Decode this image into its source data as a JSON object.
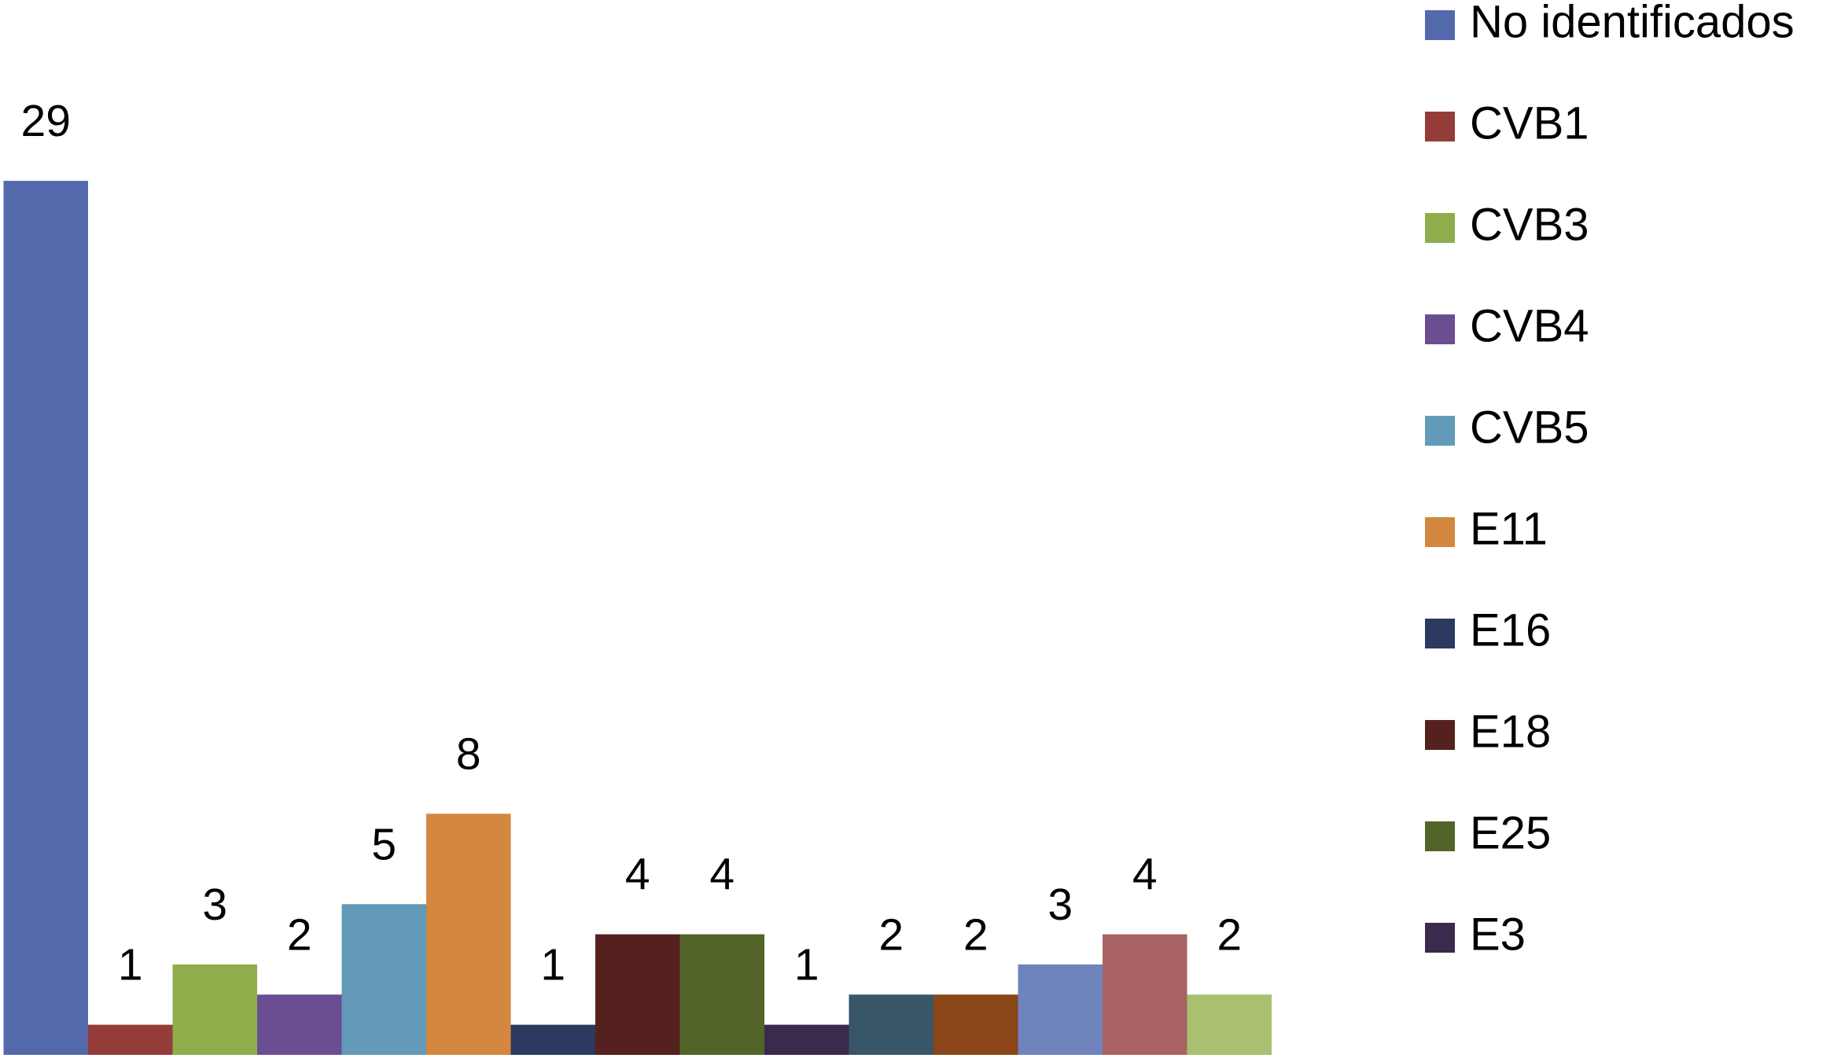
{
  "chart_data": {
    "type": "bar",
    "ylim": [
      0,
      35
    ],
    "series": [
      {
        "name": "No identificados",
        "color": "#5469ac",
        "values": [
          29
        ]
      },
      {
        "name": "CVB1",
        "color": "#943c3a",
        "values": [
          1
        ]
      },
      {
        "name": "CVB3",
        "color": "#8fad4b",
        "values": [
          3
        ]
      },
      {
        "name": "CVB4",
        "color": "#6b4e91",
        "values": [
          2
        ]
      },
      {
        "name": "CVB5",
        "color": "#629ab8",
        "values": [
          5
        ]
      },
      {
        "name": "E11",
        "color": "#d3873f",
        "values": [
          8
        ]
      },
      {
        "name": "E16",
        "color": "#2b3a5e",
        "values": [
          1
        ]
      },
      {
        "name": "E18",
        "color": "#54211f",
        "values": [
          4
        ]
      },
      {
        "name": "E25",
        "color": "#536429",
        "values": [
          4
        ]
      },
      {
        "name": "E3",
        "color": "#3a2a4e",
        "values": [
          1
        ]
      },
      {
        "color": "#385668",
        "values": [
          2
        ]
      },
      {
        "color": "#8a4518",
        "values": [
          2
        ]
      },
      {
        "color": "#6f84bd",
        "values": [
          3
        ]
      },
      {
        "color": "#a96362",
        "values": [
          4
        ]
      },
      {
        "color": "#a8c06f",
        "values": [
          2
        ]
      }
    ],
    "legend": "right"
  }
}
